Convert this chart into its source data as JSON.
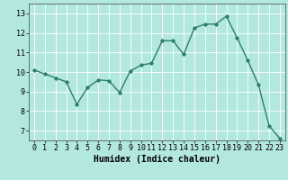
{
  "x": [
    0,
    1,
    2,
    3,
    4,
    5,
    6,
    7,
    8,
    9,
    10,
    11,
    12,
    13,
    14,
    15,
    16,
    17,
    18,
    19,
    20,
    21,
    22,
    23
  ],
  "y": [
    10.1,
    9.9,
    9.7,
    9.5,
    8.35,
    9.2,
    9.6,
    9.55,
    8.95,
    10.05,
    10.35,
    10.45,
    11.6,
    11.6,
    10.9,
    12.25,
    12.45,
    12.45,
    12.85,
    11.75,
    10.6,
    9.35,
    7.25,
    6.6
  ],
  "line_color": "#2e7d6e",
  "marker": "D",
  "markersize": 1.8,
  "linewidth": 1.0,
  "bg_color": "#b2e8e0",
  "grid_color": "#ffffff",
  "xlabel": "Humidex (Indice chaleur)",
  "xlabel_fontsize": 7,
  "xlim": [
    -0.5,
    23.5
  ],
  "ylim": [
    6.5,
    13.5
  ],
  "yticks": [
    7,
    8,
    9,
    10,
    11,
    12,
    13
  ],
  "xticks": [
    0,
    1,
    2,
    3,
    4,
    5,
    6,
    7,
    8,
    9,
    10,
    11,
    12,
    13,
    14,
    15,
    16,
    17,
    18,
    19,
    20,
    21,
    22,
    23
  ],
  "tick_fontsize": 6.0
}
